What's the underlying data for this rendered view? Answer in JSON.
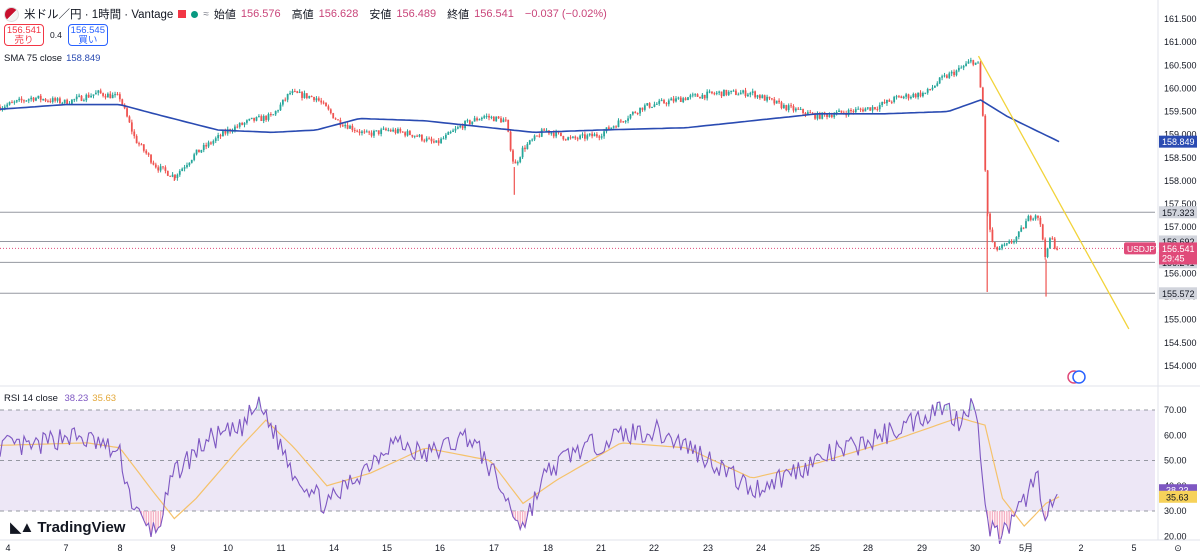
{
  "header": {
    "symbol": "米ドル／円 · 1時間 · Vantage",
    "open_label": "始値",
    "open": "156.576",
    "high_label": "高値",
    "high": "156.628",
    "low_label": "安値",
    "low": "156.489",
    "close_label": "終値",
    "close": "156.541",
    "change": "−0.037 (−0.02%)",
    "wave_icon": "≈"
  },
  "trade": {
    "sell_price": "156.541",
    "sell_label": "売り",
    "spread": "0.4",
    "buy_price": "156.545",
    "buy_label": "買い"
  },
  "indicators": {
    "sma_label": "SMA 75 close",
    "sma_value": "158.849",
    "rsi_label": "RSI 14 close",
    "rsi_value": "38.23",
    "rsi_ma_value": "35.63"
  },
  "brand": {
    "name": "TradingView"
  },
  "colors": {
    "up": "#26a69a",
    "down": "#ef5350",
    "sma": "#2a4bb2",
    "trend": "#f2d33a",
    "rsi": "#7e57c2",
    "rsi_ma": "#f5c26b",
    "price_tag": "#e04b7a",
    "rsi_band": "#ede7f6"
  },
  "chart_data": [
    {
      "type": "candlestick",
      "title": "米ドル／円 · 1時間 · Vantage",
      "ylim": [
        153.6,
        161.7
      ],
      "yticks": [
        "161.500",
        "161.000",
        "160.500",
        "160.000",
        "159.500",
        "159.000",
        "158.500",
        "158.000",
        "157.500",
        "157.000",
        "156.500",
        "156.000",
        "155.500",
        "155.000",
        "154.500",
        "154.000"
      ],
      "x_ticks": [
        "4",
        "7",
        "8",
        "9",
        "10",
        "11",
        "14",
        "15",
        "16",
        "17",
        "18",
        "21",
        "22",
        "23",
        "24",
        "25",
        "28",
        "29",
        "30",
        "5月",
        "2",
        "5",
        "⊙"
      ],
      "keypoints": [
        {
          "t": 0,
          "p": 159.6
        },
        {
          "t": 15,
          "p": 159.8
        },
        {
          "t": 30,
          "p": 159.7
        },
        {
          "t": 45,
          "p": 159.9
        },
        {
          "t": 55,
          "p": 159.8
        },
        {
          "t": 62,
          "p": 158.9
        },
        {
          "t": 72,
          "p": 158.3
        },
        {
          "t": 80,
          "p": 158.1
        },
        {
          "t": 90,
          "p": 158.6
        },
        {
          "t": 105,
          "p": 159.1
        },
        {
          "t": 115,
          "p": 159.3
        },
        {
          "t": 125,
          "p": 159.4
        },
        {
          "t": 133,
          "p": 159.9
        },
        {
          "t": 145,
          "p": 159.8
        },
        {
          "t": 155,
          "p": 159.3
        },
        {
          "t": 168,
          "p": 159.0
        },
        {
          "t": 178,
          "p": 159.1
        },
        {
          "t": 190,
          "p": 159.0
        },
        {
          "t": 200,
          "p": 158.8
        },
        {
          "t": 212,
          "p": 159.2
        },
        {
          "t": 222,
          "p": 159.4
        },
        {
          "t": 232,
          "p": 159.3
        },
        {
          "t": 236,
          "p": 158.3
        },
        {
          "t": 240,
          "p": 158.7
        },
        {
          "t": 250,
          "p": 159.1
        },
        {
          "t": 262,
          "p": 158.9
        },
        {
          "t": 275,
          "p": 159.0
        },
        {
          "t": 285,
          "p": 159.3
        },
        {
          "t": 295,
          "p": 159.6
        },
        {
          "t": 315,
          "p": 159.8
        },
        {
          "t": 330,
          "p": 159.9
        },
        {
          "t": 345,
          "p": 159.9
        },
        {
          "t": 360,
          "p": 159.6
        },
        {
          "t": 375,
          "p": 159.4
        },
        {
          "t": 390,
          "p": 159.5
        },
        {
          "t": 402,
          "p": 159.6
        },
        {
          "t": 412,
          "p": 159.8
        },
        {
          "t": 425,
          "p": 159.9
        },
        {
          "t": 432,
          "p": 160.2
        },
        {
          "t": 440,
          "p": 160.4
        },
        {
          "t": 446,
          "p": 160.6
        },
        {
          "t": 449,
          "p": 160.5
        },
        {
          "t": 451,
          "p": 159.4
        },
        {
          "t": 453,
          "p": 157.3
        },
        {
          "t": 456,
          "p": 156.5
        },
        {
          "t": 462,
          "p": 156.6
        },
        {
          "t": 467,
          "p": 156.8
        },
        {
          "t": 472,
          "p": 157.2
        },
        {
          "t": 476,
          "p": 157.3
        },
        {
          "t": 478,
          "p": 156.9
        },
        {
          "t": 480,
          "p": 156.3
        },
        {
          "t": 482,
          "p": 156.8
        },
        {
          "t": 484,
          "p": 156.6
        },
        {
          "t": 486,
          "p": 156.54
        }
      ],
      "wicks": [
        {
          "t": 453,
          "low": 155.6
        },
        {
          "t": 480,
          "low": 155.5
        },
        {
          "t": 236,
          "low": 157.7
        },
        {
          "t": 80,
          "low": 158.0
        }
      ],
      "sma75": {
        "name": "SMA 75 close",
        "last": 158.849,
        "keypoints": [
          {
            "t": 0,
            "p": 159.55
          },
          {
            "t": 30,
            "p": 159.65
          },
          {
            "t": 55,
            "p": 159.65
          },
          {
            "t": 75,
            "p": 159.4
          },
          {
            "t": 100,
            "p": 159.1
          },
          {
            "t": 125,
            "p": 159.05
          },
          {
            "t": 145,
            "p": 159.1
          },
          {
            "t": 165,
            "p": 159.35
          },
          {
            "t": 195,
            "p": 159.3
          },
          {
            "t": 225,
            "p": 159.15
          },
          {
            "t": 245,
            "p": 159.05
          },
          {
            "t": 275,
            "p": 159.1
          },
          {
            "t": 315,
            "p": 159.15
          },
          {
            "t": 345,
            "p": 159.3
          },
          {
            "t": 375,
            "p": 159.45
          },
          {
            "t": 405,
            "p": 159.45
          },
          {
            "t": 435,
            "p": 159.5
          },
          {
            "t": 450,
            "p": 159.75
          },
          {
            "t": 462,
            "p": 159.4
          },
          {
            "t": 475,
            "p": 159.1
          },
          {
            "t": 486,
            "p": 158.849
          }
        ]
      },
      "horizontal_levels": [
        157.323,
        156.692,
        156.241,
        155.572
      ],
      "level_labels": [
        "157.323",
        "156.692",
        "156.241",
        "155.572"
      ],
      "trendline": [
        {
          "t": 449,
          "p": 160.7
        },
        {
          "t": 518,
          "p": 154.8
        }
      ],
      "last_price": {
        "symbol": "USDJPY",
        "value": "156.541",
        "countdown": "29:45"
      },
      "sma_label": "158.849",
      "tag_sma_value": 158.849
    },
    {
      "type": "line",
      "title": "RSI 14 close",
      "ylim": [
        18,
        78
      ],
      "yticks": [
        "70.00",
        "60.00",
        "50.00",
        "40.00",
        "30.00",
        "20.00"
      ],
      "bands": [
        30,
        50,
        70
      ],
      "rsi": {
        "name": "RSI",
        "last": "38.23",
        "keypoints": [
          {
            "t": 0,
            "p": 56
          },
          {
            "t": 15,
            "p": 55
          },
          {
            "t": 30,
            "p": 60
          },
          {
            "t": 45,
            "p": 57
          },
          {
            "t": 55,
            "p": 52
          },
          {
            "t": 60,
            "p": 35
          },
          {
            "t": 66,
            "p": 24
          },
          {
            "t": 72,
            "p": 22
          },
          {
            "t": 80,
            "p": 45
          },
          {
            "t": 95,
            "p": 58
          },
          {
            "t": 110,
            "p": 62
          },
          {
            "t": 118,
            "p": 72
          },
          {
            "t": 122,
            "p": 68
          },
          {
            "t": 135,
            "p": 45
          },
          {
            "t": 150,
            "p": 32
          },
          {
            "t": 165,
            "p": 45
          },
          {
            "t": 180,
            "p": 58
          },
          {
            "t": 195,
            "p": 52
          },
          {
            "t": 215,
            "p": 60
          },
          {
            "t": 225,
            "p": 47
          },
          {
            "t": 235,
            "p": 30
          },
          {
            "t": 240,
            "p": 24
          },
          {
            "t": 250,
            "p": 44
          },
          {
            "t": 262,
            "p": 53
          },
          {
            "t": 285,
            "p": 60
          },
          {
            "t": 300,
            "p": 62
          },
          {
            "t": 315,
            "p": 56
          },
          {
            "t": 330,
            "p": 48
          },
          {
            "t": 345,
            "p": 38
          },
          {
            "t": 360,
            "p": 44
          },
          {
            "t": 380,
            "p": 52
          },
          {
            "t": 400,
            "p": 58
          },
          {
            "t": 420,
            "p": 66
          },
          {
            "t": 432,
            "p": 72
          },
          {
            "t": 440,
            "p": 66
          },
          {
            "t": 446,
            "p": 74
          },
          {
            "t": 450,
            "p": 55
          },
          {
            "t": 453,
            "p": 25
          },
          {
            "t": 458,
            "p": 20
          },
          {
            "t": 465,
            "p": 25
          },
          {
            "t": 472,
            "p": 38
          },
          {
            "t": 476,
            "p": 44
          },
          {
            "t": 480,
            "p": 28
          },
          {
            "t": 486,
            "p": 38.23
          }
        ]
      },
      "rsi_ma": {
        "name": "MA",
        "last": "35.63",
        "keypoints": [
          {
            "t": 0,
            "p": 56
          },
          {
            "t": 40,
            "p": 57
          },
          {
            "t": 55,
            "p": 55
          },
          {
            "t": 70,
            "p": 38
          },
          {
            "t": 80,
            "p": 27
          },
          {
            "t": 90,
            "p": 35
          },
          {
            "t": 110,
            "p": 55
          },
          {
            "t": 122,
            "p": 66
          },
          {
            "t": 135,
            "p": 55
          },
          {
            "t": 150,
            "p": 40
          },
          {
            "t": 170,
            "p": 45
          },
          {
            "t": 195,
            "p": 55
          },
          {
            "t": 225,
            "p": 50
          },
          {
            "t": 240,
            "p": 33
          },
          {
            "t": 255,
            "p": 42
          },
          {
            "t": 285,
            "p": 57
          },
          {
            "t": 315,
            "p": 55
          },
          {
            "t": 345,
            "p": 43
          },
          {
            "t": 375,
            "p": 49
          },
          {
            "t": 410,
            "p": 58
          },
          {
            "t": 440,
            "p": 67
          },
          {
            "t": 452,
            "p": 64
          },
          {
            "t": 460,
            "p": 35
          },
          {
            "t": 470,
            "p": 24
          },
          {
            "t": 480,
            "p": 33
          },
          {
            "t": 486,
            "p": 35.63
          }
        ]
      }
    }
  ]
}
